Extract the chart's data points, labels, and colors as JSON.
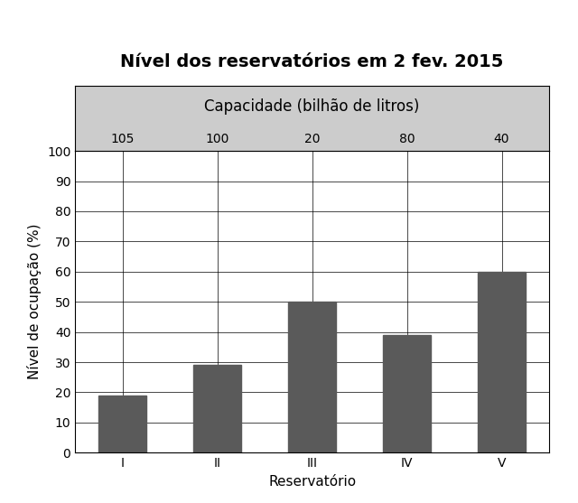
{
  "title": "Nível dos reservatórios em 2 fev. 2015",
  "categories": [
    "I",
    "II",
    "III",
    "IV",
    "V"
  ],
  "values": [
    19,
    29,
    50,
    39,
    60
  ],
  "bar_color": "#5a5a5a",
  "capacities": [
    "105",
    "100",
    "20",
    "80",
    "40"
  ],
  "capacity_label": "Capacidade (bilhão de litros)",
  "xlabel": "Reservatório",
  "ylabel": "Nível de ocupação (%)",
  "ylim": [
    0,
    100
  ],
  "yticks": [
    0,
    10,
    20,
    30,
    40,
    50,
    60,
    70,
    80,
    90,
    100
  ],
  "title_fontsize": 14,
  "axis_label_fontsize": 11,
  "tick_fontsize": 10,
  "capacity_fontsize": 10,
  "capacity_label_fontsize": 12,
  "background_color": "#ffffff",
  "top_box_color": "#cccccc"
}
